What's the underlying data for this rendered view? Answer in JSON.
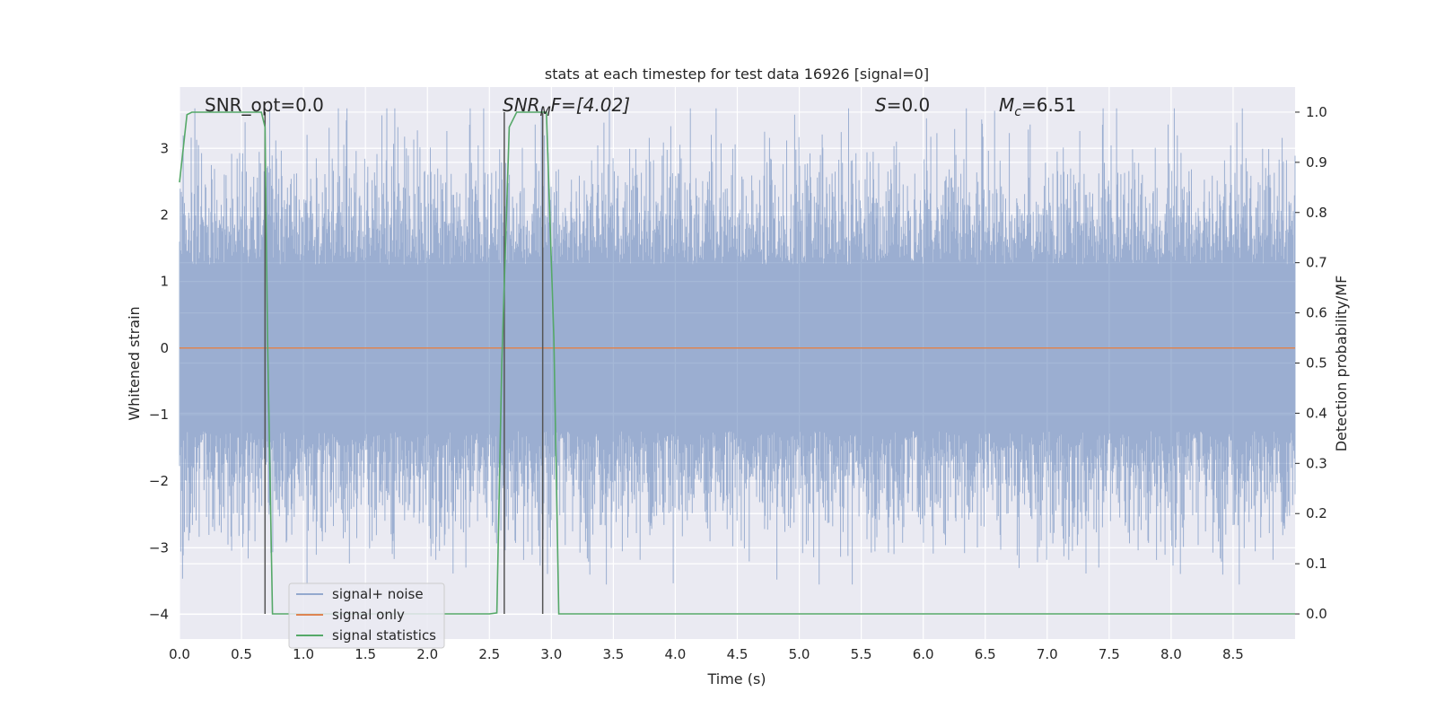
{
  "chart_data": {
    "type": "line",
    "title": "stats at each timestep for test data 16926 [signal=0]",
    "xlabel": "Time (s)",
    "ylabel_left": "Whitened strain",
    "ylabel_right": "Detection probability/MF",
    "xlim": [
      0.0,
      9.0
    ],
    "ylim_left": [
      -4.37,
      3.92
    ],
    "ylim_right": [
      -0.05,
      1.05
    ],
    "xticks": [
      "0.0",
      "0.5",
      "1.0",
      "1.5",
      "2.0",
      "2.5",
      "3.0",
      "3.5",
      "4.0",
      "4.5",
      "5.0",
      "5.5",
      "6.0",
      "6.5",
      "7.0",
      "7.5",
      "8.0",
      "8.5"
    ],
    "yticks_left": [
      "3",
      "2",
      "1",
      "0",
      "−1",
      "−2",
      "−3",
      "−4"
    ],
    "yticks_right": [
      "1.0",
      "0.9",
      "0.8",
      "0.7",
      "0.6",
      "0.5",
      "0.4",
      "0.3",
      "0.2",
      "0.1",
      "0.0"
    ],
    "grid": true,
    "legend": "lower-left",
    "annotations": {
      "snr_opt": "SNR_opt=0.0",
      "snr_mf_sym": "SNR",
      "snr_mf_sub": "M",
      "snr_mf_rest": "F=[4.02]",
      "s_sym": "S",
      "s_rest": "=0.0",
      "mc_sym": "M",
      "mc_sub": "c",
      "mc_rest": "=6.51"
    },
    "series": [
      {
        "name": "signal+ noise",
        "color": "#4c72b0",
        "style": "noise band (whitened strain), mean 0, typical range ±2, extremes about ±3.6"
      },
      {
        "name": "signal only",
        "color": "#dd8452",
        "x": [
          0.0,
          9.0
        ],
        "y": [
          0.0,
          0.0
        ]
      },
      {
        "name": "signal statistics",
        "color": "#55a868",
        "axis": "right",
        "x": [
          0.0,
          0.06,
          0.1,
          0.2,
          0.4,
          0.6,
          0.66,
          0.69,
          0.71,
          0.75,
          0.8,
          1.0,
          1.5,
          2.0,
          2.5,
          2.56,
          2.6,
          2.66,
          2.72,
          2.8,
          2.9,
          2.96,
          3.02,
          3.06,
          3.5,
          4.0,
          5.0,
          6.0,
          7.0,
          8.0,
          9.0
        ],
        "y": [
          0.86,
          0.995,
          1.0,
          1.0,
          1.0,
          1.0,
          1.0,
          0.97,
          0.55,
          0.0,
          0.0,
          0.0,
          0.0,
          0.0,
          0.0,
          0.002,
          0.5,
          0.97,
          1.0,
          1.0,
          1.0,
          1.0,
          0.55,
          0.0,
          0.0,
          0.0,
          0.0,
          0.0,
          0.0,
          0.0,
          0.0
        ]
      }
    ],
    "vertical_markers_x": [
      0.69,
      2.62,
      2.93
    ]
  }
}
